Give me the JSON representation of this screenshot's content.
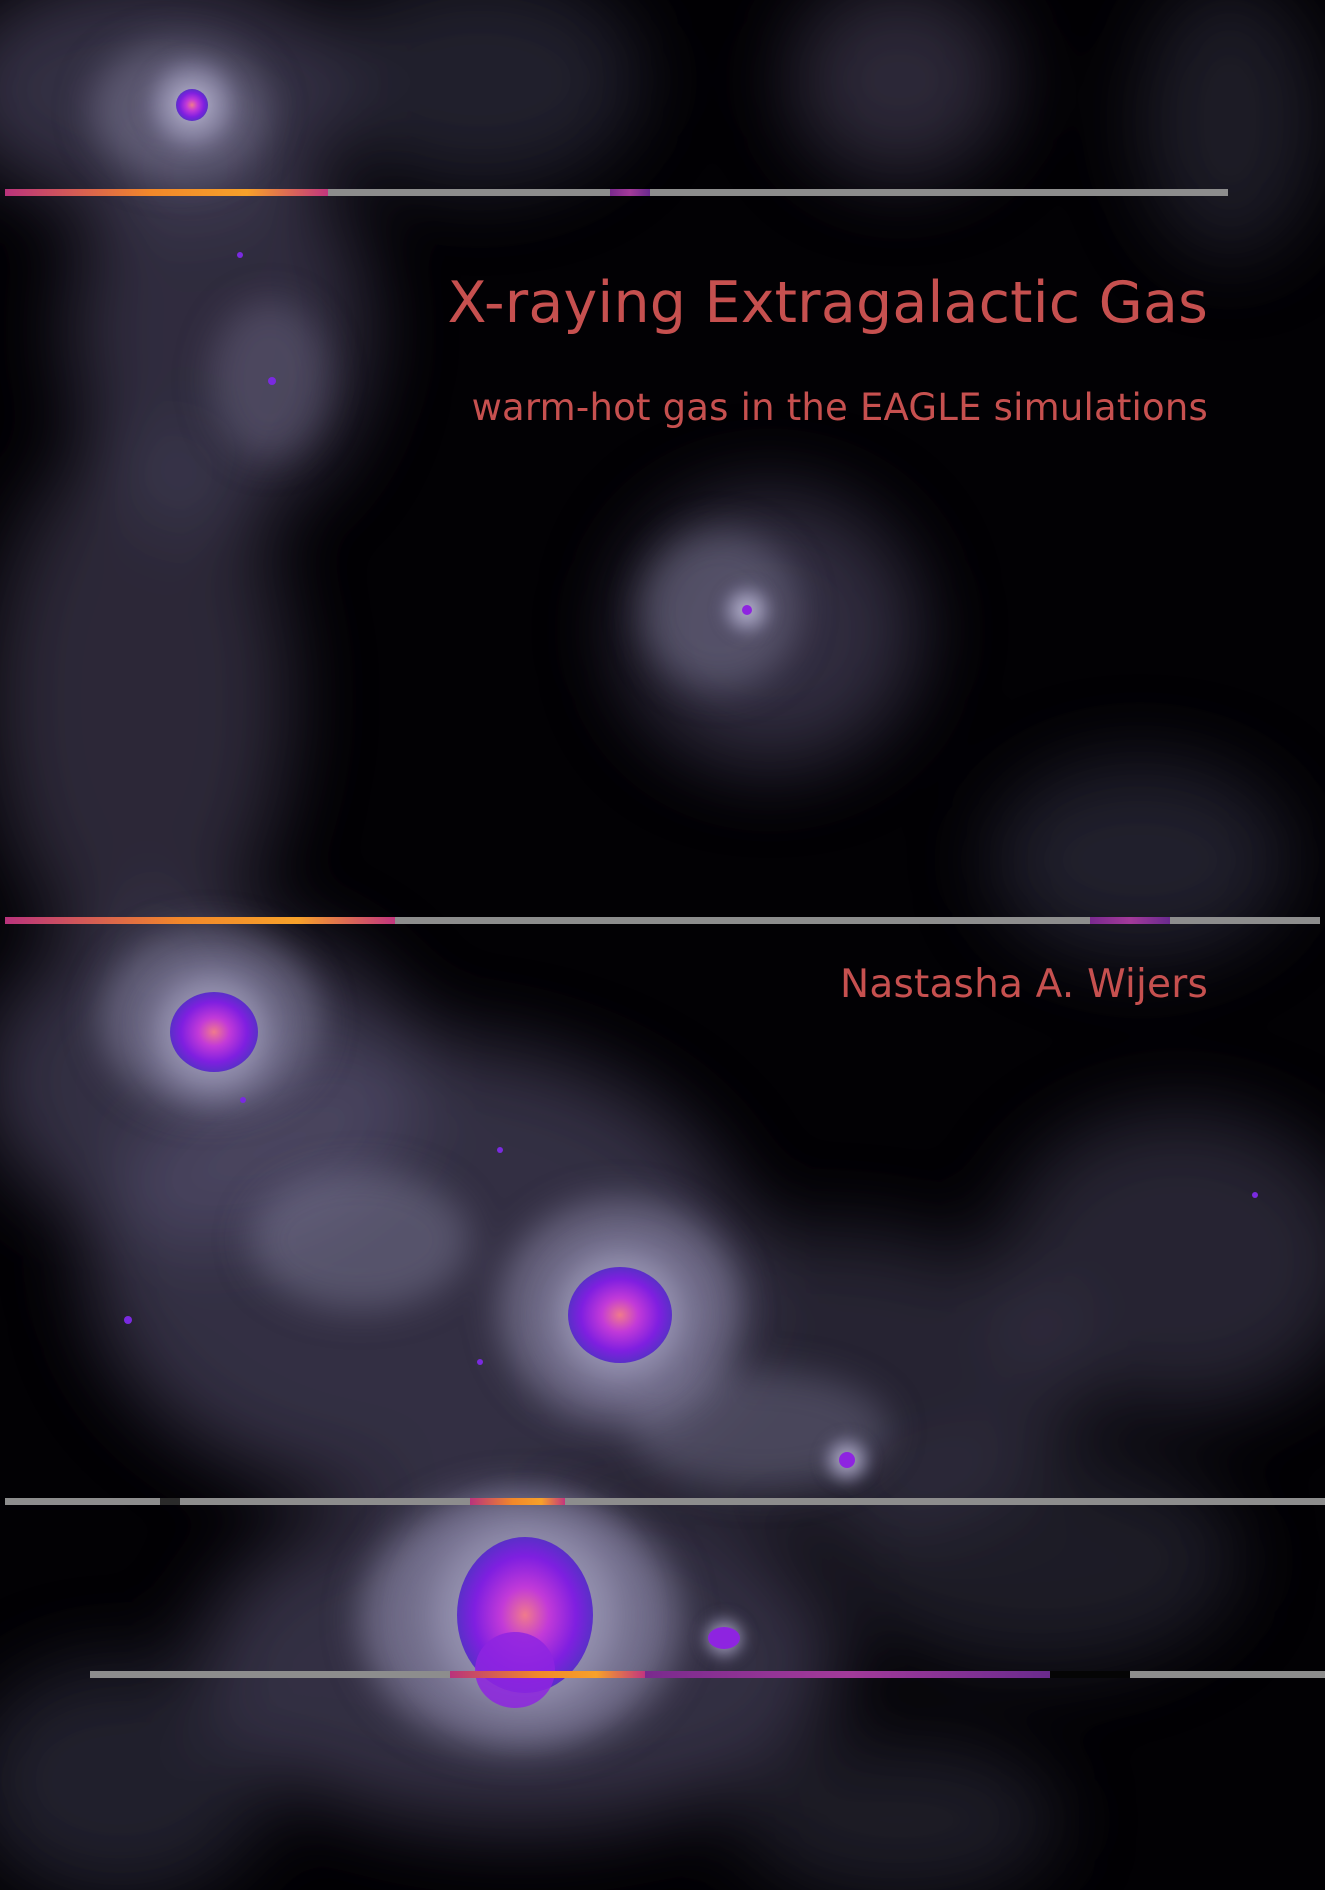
{
  "cover": {
    "title": "X-raying Extragalactic Gas",
    "subtitle": "warm-hot gas in the EAGLE simulations",
    "author": "Nastasha A. Wijers"
  },
  "colors": {
    "text": "#c6504f",
    "background": "#020104",
    "gas_glow": "#8f8aa8",
    "halo_core": "#8e24e0",
    "stripe_hot": "#f7a12a",
    "stripe_grey": "#8d8d8d"
  }
}
